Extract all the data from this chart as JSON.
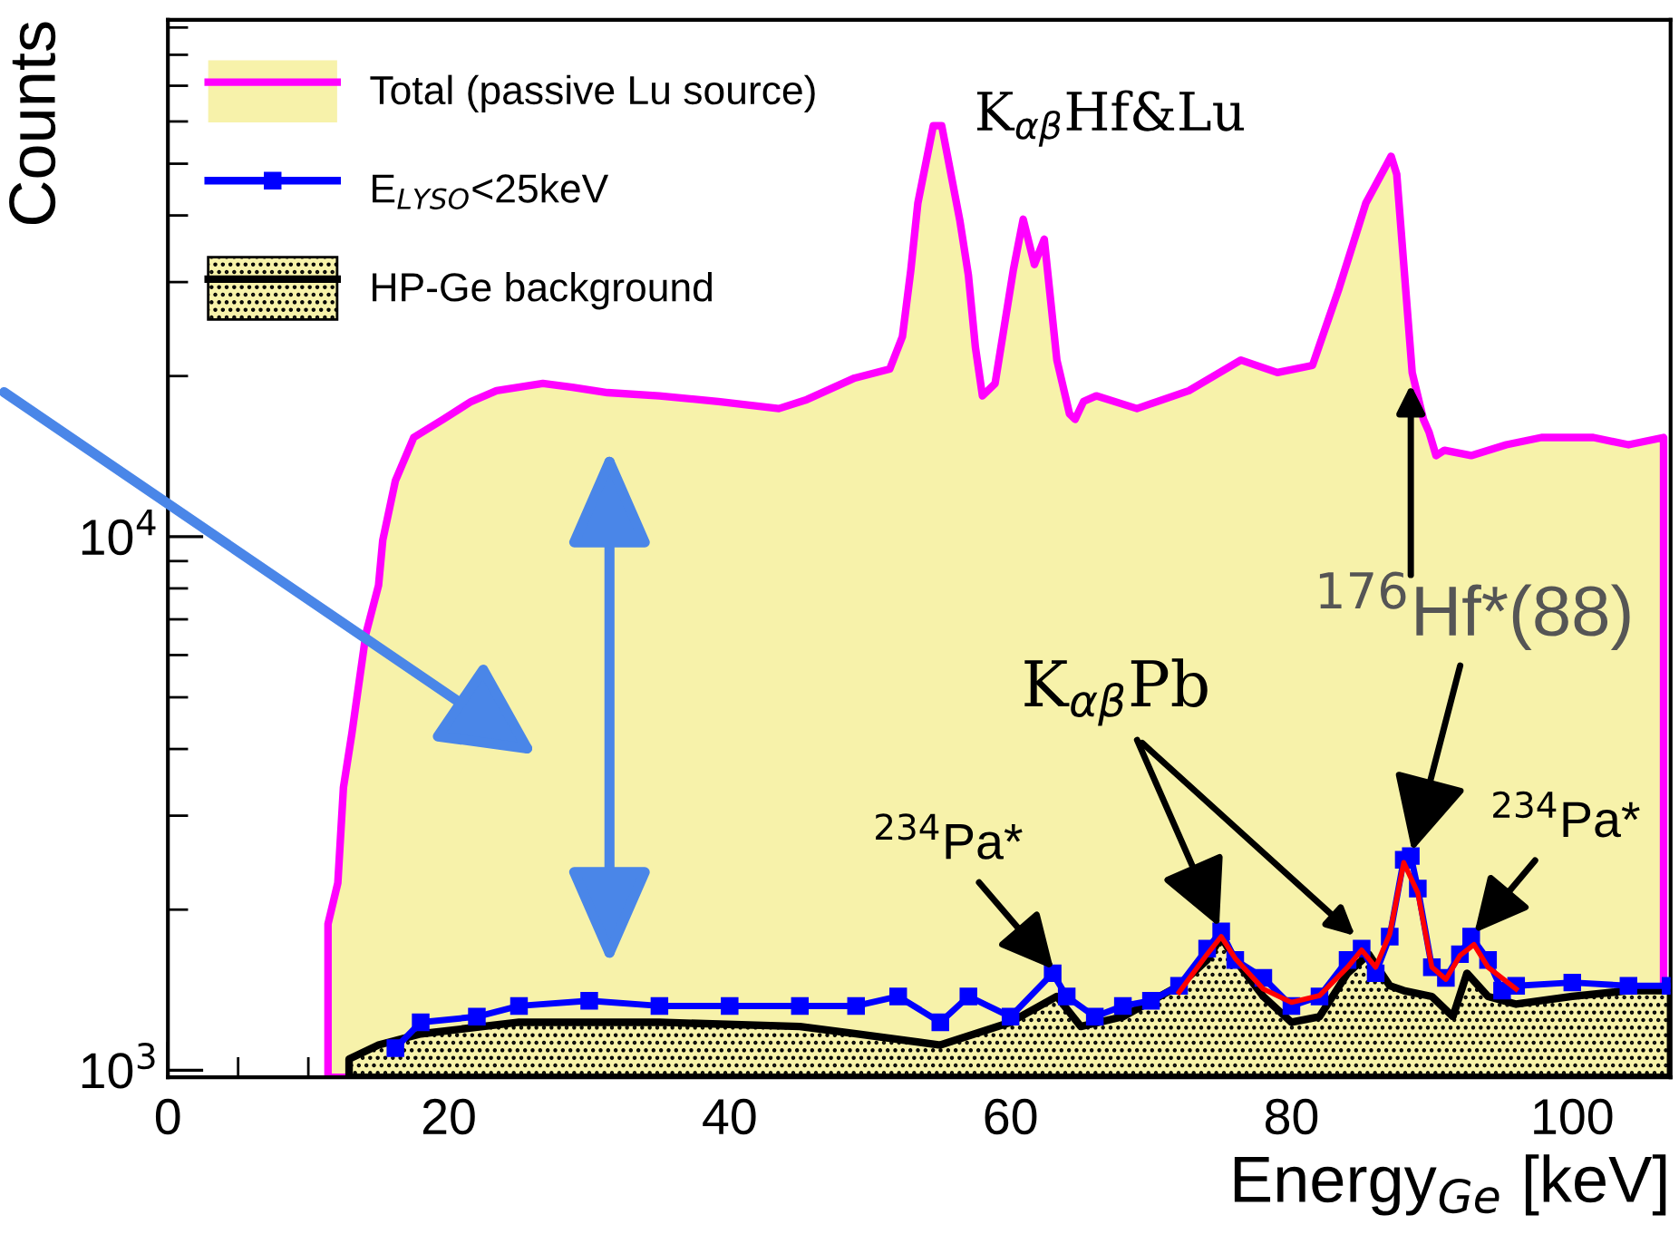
{
  "chart_data": {
    "type": "line",
    "xlabel": "Energy$_{Ge}$ [keV]",
    "ylabel": "Counts",
    "xlim": [
      0,
      107
    ],
    "xticks": [
      0,
      20,
      40,
      60,
      80,
      100
    ],
    "ylim": [
      970,
      93000
    ],
    "yticks": [
      {
        "value": 1000,
        "label": "10$^{3}$"
      },
      {
        "value": 10000,
        "label": "10$^{4}$"
      }
    ],
    "log": "y",
    "grid": false,
    "legend": "top left",
    "series": [
      {
        "name": "Total (passive Lu source)",
        "type": "area",
        "color": "#ff00ff",
        "x": [
          11.4,
          12.1,
          12.5,
          13.1,
          14.1,
          15,
          15.3,
          16.2,
          17.5,
          19.6,
          21.6,
          23.4,
          26.7,
          28.8,
          31.3,
          35,
          39.2,
          43.5,
          45.5,
          48.9,
          51.4,
          52.3,
          52.9,
          53.4,
          54.5,
          55.1,
          56.4,
          57,
          57.5,
          58,
          58.9,
          60.2,
          60.9,
          61.7,
          62.4,
          63.3,
          64.2,
          64.6,
          65.2,
          66.1,
          69,
          72.7,
          76.4,
          79,
          81.5,
          83.4,
          85.3,
          87.1,
          87.5,
          88,
          88.6,
          89.4,
          89.8,
          90.3,
          90.9,
          92.8,
          95.3,
          97.8,
          101.5,
          104,
          106.5
        ],
        "values": [
          1880,
          2245,
          3390,
          4280,
          6575,
          8110,
          9850,
          12730,
          15340,
          16590,
          17920,
          18780,
          19370,
          19060,
          18620,
          18360,
          17920,
          17380,
          18070,
          19830,
          20610,
          23700,
          31620,
          42170,
          58900,
          58900,
          39000,
          30900,
          22640,
          18360,
          19370,
          31620,
          39350,
          32360,
          36100,
          21430,
          16980,
          16590,
          17920,
          18360,
          17380,
          18780,
          21430,
          20300,
          20940,
          29250,
          42170,
          51640,
          47750,
          32360,
          20300,
          16590,
          15700,
          14190,
          14520,
          14190,
          14870,
          15340,
          15340,
          14870,
          15340
        ]
      },
      {
        "name": "E$_{LYSO}$<25keV",
        "marker": "square",
        "color": "#0000ff",
        "x": [
          16.2,
          18,
          22,
          25,
          30,
          35,
          40,
          45,
          49,
          52,
          55,
          57,
          60,
          63,
          64,
          66,
          68,
          70,
          72,
          74,
          75,
          76,
          78,
          80,
          82,
          84,
          85,
          86,
          87,
          88,
          88.5,
          89,
          90,
          91,
          92,
          92.8,
          94,
          95,
          96,
          100,
          104,
          107
        ],
        "values": [
          1100,
          1230,
          1260,
          1320,
          1350,
          1320,
          1320,
          1320,
          1320,
          1375,
          1230,
          1375,
          1260,
          1520,
          1375,
          1260,
          1320,
          1350,
          1440,
          1690,
          1820,
          1610,
          1490,
          1320,
          1375,
          1610,
          1690,
          1520,
          1780,
          2480,
          2520,
          2190,
          1560,
          1490,
          1650,
          1780,
          1610,
          1410,
          1440,
          1460,
          1440,
          1440
        ]
      },
      {
        "name": "HP-Ge background",
        "type": "area",
        "color": "#000000",
        "x": [
          12.9,
          15,
          18,
          25,
          35,
          45,
          49,
          55,
          60,
          63.3,
          65,
          68,
          72,
          74,
          75,
          76,
          78,
          80,
          82,
          84,
          85.5,
          87,
          88,
          90,
          91.5,
          92.5,
          94,
          96,
          100,
          104,
          107
        ],
        "values": [
          1050,
          1115,
          1170,
          1230,
          1230,
          1208,
          1170,
          1115,
          1230,
          1375,
          1208,
          1260,
          1440,
          1610,
          1780,
          1610,
          1375,
          1230,
          1260,
          1520,
          1650,
          1440,
          1410,
          1375,
          1260,
          1520,
          1375,
          1330,
          1375,
          1410,
          1410
        ]
      },
      {
        "type": "line",
        "color": "#ff0000",
        "x": [
          72,
          74,
          75,
          76,
          78,
          80,
          82,
          84,
          85,
          86,
          87,
          88,
          89,
          90,
          91,
          92,
          93,
          94,
          96
        ],
        "values": [
          1400,
          1650,
          1780,
          1620,
          1420,
          1340,
          1380,
          1560,
          1680,
          1560,
          1800,
          2450,
          2150,
          1560,
          1480,
          1640,
          1720,
          1560,
          1420
        ]
      }
    ],
    "annotations": [
      {
        "text": "K$_{αβ}$Hf&Lu",
        "x": 55.1,
        "y": 58900
      },
      {
        "text": "$^{176}$Hf*(88)",
        "x": 88.5,
        "y": 2520
      },
      {
        "text": "K$_{αβ}$Pb",
        "x": 75,
        "y": 1820
      },
      {
        "text": "$^{234}$Pa*",
        "x": 63.3,
        "y": 1520
      },
      {
        "text": "$^{234}$Pa*",
        "x": 92.8,
        "y": 1780
      }
    ]
  }
}
